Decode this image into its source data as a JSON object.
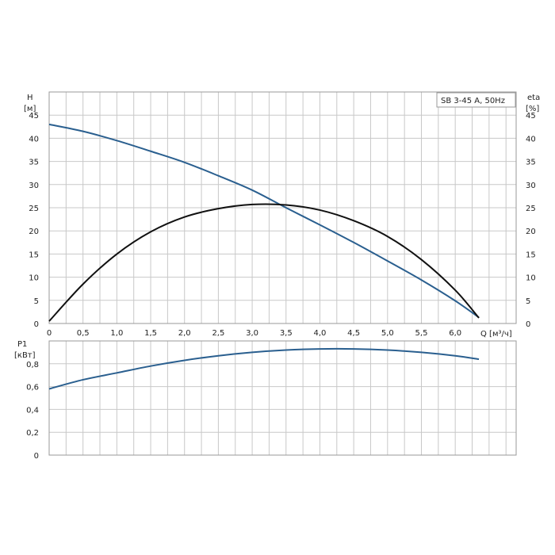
{
  "chart_data": [
    {
      "type": "line",
      "title": "SB 3-45 A, 50Hz",
      "left_axis": {
        "label": "H",
        "unit": "[м]",
        "ylim": [
          0,
          50
        ],
        "ticks": [
          "0",
          "5",
          "10",
          "15",
          "20",
          "25",
          "30",
          "35",
          "40",
          "45"
        ]
      },
      "right_axis": {
        "label": "eta",
        "unit": "[%]",
        "ylim": [
          0,
          50
        ],
        "ticks": [
          "0",
          "5",
          "10",
          "15",
          "20",
          "25",
          "30",
          "35",
          "40",
          "45"
        ]
      },
      "x_axis": {
        "label": "Q [м³/ч]",
        "xlim": [
          0,
          6.9
        ],
        "ticks": [
          "0",
          "0,5",
          "1,0",
          "1,5",
          "2,0",
          "2,5",
          "3,0",
          "3,5",
          "4,0",
          "4,5",
          "5,0",
          "5,5",
          "6,0"
        ]
      },
      "grid": true,
      "series": [
        {
          "name": "H",
          "axis": "left",
          "color": "#2a5f8f",
          "x": [
            0,
            0.5,
            1.0,
            1.5,
            2.0,
            2.5,
            3.0,
            3.5,
            4.0,
            4.5,
            5.0,
            5.5,
            6.0,
            6.35
          ],
          "y": [
            43.0,
            41.5,
            39.5,
            37.2,
            34.8,
            31.9,
            28.8,
            25.0,
            21.3,
            17.5,
            13.5,
            9.4,
            4.9,
            1.3
          ]
        },
        {
          "name": "eta",
          "axis": "right",
          "color": "#111111",
          "x": [
            0,
            0.5,
            1.0,
            1.5,
            2.0,
            2.5,
            3.0,
            3.5,
            4.0,
            4.5,
            5.0,
            5.5,
            6.0,
            6.35
          ],
          "y": [
            0.5,
            8.5,
            15.0,
            19.8,
            23.0,
            24.8,
            25.7,
            25.6,
            24.5,
            22.2,
            18.8,
            13.8,
            7.2,
            1.2
          ]
        }
      ]
    },
    {
      "type": "line",
      "title": "",
      "left_axis": {
        "label": "P1",
        "unit": "[кВт]",
        "ylim": [
          0,
          1.0
        ],
        "ticks": [
          "0",
          "0,2",
          "0,4",
          "0,6",
          "0,8"
        ]
      },
      "x_axis": {
        "xlim": [
          0,
          6.9
        ]
      },
      "grid": true,
      "series": [
        {
          "name": "P1",
          "axis": "left",
          "color": "#2a5f8f",
          "x": [
            0,
            0.5,
            1.0,
            1.5,
            2.0,
            2.5,
            3.0,
            3.5,
            4.0,
            4.5,
            5.0,
            5.5,
            6.0,
            6.35
          ],
          "y": [
            0.58,
            0.66,
            0.72,
            0.78,
            0.83,
            0.87,
            0.9,
            0.92,
            0.93,
            0.93,
            0.92,
            0.9,
            0.87,
            0.84
          ]
        }
      ]
    }
  ]
}
